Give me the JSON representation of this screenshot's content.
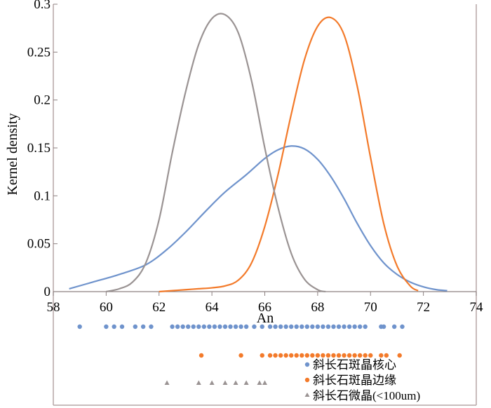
{
  "chart_data": {
    "type": "line",
    "title": "",
    "xlabel": "An",
    "ylabel": "Kernel density",
    "xlim": [
      58,
      74
    ],
    "ylim": [
      0,
      0.3
    ],
    "x_ticks": [
      58,
      60,
      62,
      64,
      66,
      68,
      70,
      72,
      74
    ],
    "y_ticks": [
      0,
      0.05,
      0.1,
      0.15,
      0.2,
      0.25,
      0.3
    ],
    "x_tick_labels": [
      "58",
      "60",
      "62",
      "64",
      "66",
      "68",
      "70",
      "72",
      "74"
    ],
    "y_tick_labels": [
      "0",
      "0.05",
      "0.1",
      "0.15",
      "0.2",
      "0.25",
      "0.3"
    ],
    "grid": false,
    "legend_position": "bottom-right",
    "colors": {
      "core": "#6f93cc",
      "rim": "#f37a2a",
      "micro": "#9a9393",
      "frame": "#b6a6a6"
    },
    "series": [
      {
        "name": "斜长石斑晶核心",
        "color": "#6f93cc",
        "marker": "circle",
        "x": [
          58.6,
          59.5,
          60.5,
          61.5,
          62.3,
          63.0,
          63.8,
          64.5,
          65.3,
          66.0,
          66.5,
          67.0,
          67.5,
          68.0,
          68.5,
          69.0,
          69.5,
          70.0,
          70.5,
          71.0,
          71.5,
          72.0,
          72.5,
          72.9
        ],
        "y": [
          0.003,
          0.01,
          0.018,
          0.028,
          0.044,
          0.062,
          0.085,
          0.104,
          0.122,
          0.139,
          0.148,
          0.152,
          0.149,
          0.138,
          0.12,
          0.097,
          0.071,
          0.048,
          0.03,
          0.018,
          0.01,
          0.005,
          0.002,
          0.001
        ],
        "points": [
          59.0,
          60.0,
          60.3,
          60.6,
          61.1,
          61.4,
          61.7,
          62.5,
          62.7,
          62.9,
          63.1,
          63.3,
          63.5,
          63.7,
          63.9,
          64.1,
          64.3,
          64.5,
          64.7,
          64.9,
          65.1,
          65.3,
          65.6,
          65.9,
          66.2,
          66.4,
          66.6,
          66.8,
          67.0,
          67.2,
          67.4,
          67.6,
          67.8,
          68.0,
          68.2,
          68.4,
          68.6,
          68.8,
          69.0,
          69.2,
          69.4,
          69.6,
          69.8,
          70.4,
          70.5,
          70.9,
          71.2
        ]
      },
      {
        "name": "斜长石斑晶边缘",
        "color": "#f37a2a",
        "marker": "circle",
        "x": [
          62.0,
          62.5,
          63.0,
          63.5,
          64.0,
          64.5,
          65.0,
          65.5,
          66.0,
          66.5,
          67.0,
          67.5,
          68.0,
          68.5,
          69.0,
          69.5,
          70.0,
          70.5,
          71.0,
          71.5,
          71.8
        ],
        "y": [
          0.0,
          0.001,
          0.002,
          0.003,
          0.004,
          0.006,
          0.012,
          0.03,
          0.068,
          0.122,
          0.185,
          0.242,
          0.277,
          0.286,
          0.268,
          0.214,
          0.14,
          0.071,
          0.027,
          0.006,
          0.001
        ],
        "points": [
          63.6,
          65.1,
          65.9,
          66.2,
          66.4,
          66.6,
          66.8,
          67.0,
          67.2,
          67.4,
          67.6,
          67.8,
          68.0,
          68.2,
          68.4,
          68.6,
          68.8,
          69.0,
          69.2,
          69.4,
          69.6,
          69.8,
          70.0,
          70.4,
          70.6,
          71.1
        ]
      },
      {
        "name": "斜长石微晶(<100um)",
        "color": "#9a9393",
        "marker": "triangle",
        "x": [
          60.0,
          60.5,
          61.0,
          61.5,
          62.0,
          62.5,
          63.0,
          63.5,
          64.0,
          64.5,
          65.0,
          65.5,
          66.0,
          66.5,
          67.0,
          67.5,
          68.0,
          68.3
        ],
        "y": [
          0.0,
          0.003,
          0.01,
          0.03,
          0.075,
          0.145,
          0.208,
          0.258,
          0.285,
          0.289,
          0.27,
          0.22,
          0.15,
          0.088,
          0.04,
          0.013,
          0.002,
          0.0
        ],
        "points": [
          62.3,
          63.5,
          64.0,
          64.5,
          64.9,
          65.3,
          65.8,
          66.0
        ]
      }
    ]
  }
}
